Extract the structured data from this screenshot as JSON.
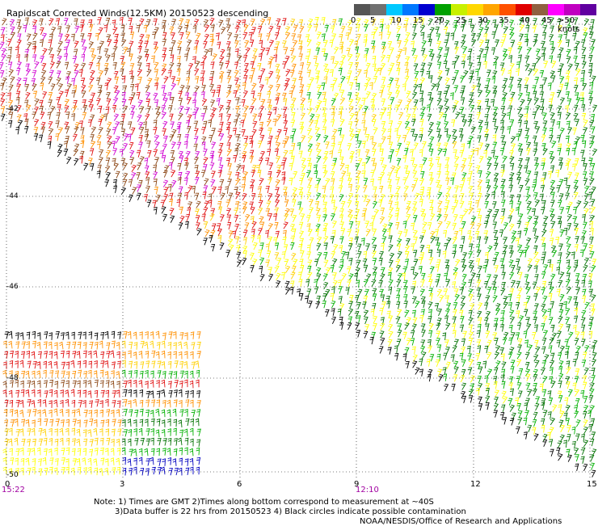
{
  "title": "Rapidscat Corrected Winds(12.5KM) 20150523 descending",
  "legend": {
    "labels": [
      "0",
      "5",
      "10",
      "15",
      "20",
      "25",
      "30",
      "35",
      "40",
      "45",
      ">50 knots"
    ],
    "colors": [
      "#555555",
      "#707070",
      "#00c8ff",
      "#0078ff",
      "#0000d0",
      "#00a000",
      "#c8f000",
      "#ffd700",
      "#ffa500",
      "#ff5000",
      "#e00000",
      "#906040",
      "#ff00ff",
      "#c000c0",
      "#6000a0"
    ]
  },
  "map": {
    "lat_labels": [
      "-42",
      "-44",
      "-46",
      "-48",
      "-50"
    ],
    "lon_labels": [
      "0",
      "3",
      "6",
      "9",
      "12",
      "15"
    ],
    "time_labels": {
      "left": "15:22",
      "mid": "12:10"
    },
    "barb_colors": {
      "calm": "#000000",
      "green_dark": "#007000",
      "green": "#00b000",
      "yellow": "#ffff00",
      "gold": "#ffd000",
      "orange": "#ff9000",
      "red": "#e01010",
      "brown": "#8b4513",
      "magenta": "#d000d0",
      "blue": "#0000c0"
    }
  },
  "notes": {
    "line1": "Note: 1) Times are GMT 2)Times along bottom correspond to measurement at ~40S",
    "line2": "3)Data buffer is 22 hrs from 20150523 4) Black circles indicate possible contamination",
    "line3": "NOAA/NESDIS/Office of Research and Applications"
  }
}
